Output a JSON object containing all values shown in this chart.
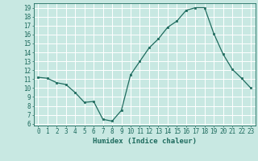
{
  "x": [
    0,
    1,
    2,
    3,
    4,
    5,
    6,
    7,
    8,
    9,
    10,
    11,
    12,
    13,
    14,
    15,
    16,
    17,
    18,
    19,
    20,
    21,
    22,
    23
  ],
  "y": [
    11.2,
    11.1,
    10.6,
    10.4,
    9.5,
    8.4,
    8.5,
    6.5,
    6.3,
    7.5,
    11.5,
    13.0,
    14.5,
    15.5,
    16.8,
    17.5,
    18.7,
    19.0,
    19.0,
    16.1,
    13.8,
    12.1,
    11.1,
    10.0
  ],
  "xlabel": "Humidex (Indice chaleur)",
  "ylim": [
    5.8,
    19.5
  ],
  "xlim": [
    -0.5,
    23.5
  ],
  "yticks": [
    6,
    7,
    8,
    9,
    10,
    11,
    12,
    13,
    14,
    15,
    16,
    17,
    18,
    19
  ],
  "xticks": [
    0,
    1,
    2,
    3,
    4,
    5,
    6,
    7,
    8,
    9,
    10,
    11,
    12,
    13,
    14,
    15,
    16,
    17,
    18,
    19,
    20,
    21,
    22,
    23
  ],
  "line_color": "#1e6b5e",
  "marker_color": "#1e6b5e",
  "bg_color": "#c8e8e2",
  "grid_color": "#ffffff",
  "tick_label_color": "#1e6b5e",
  "label_color": "#1e6b5e",
  "axis_label_fontsize": 6.5,
  "tick_fontsize": 5.5
}
